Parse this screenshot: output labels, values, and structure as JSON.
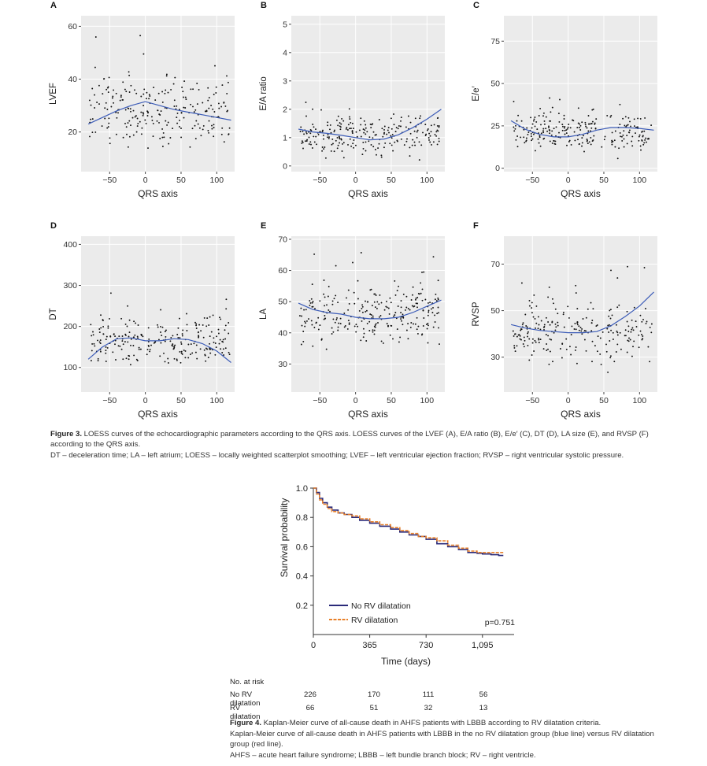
{
  "figure3": {
    "caption_label": "Figure 3.",
    "caption_text": " LOESS curves of the echocardiographic parameters according to the QRS axis. LOESS curves of the LVEF (A), E/A ratio (B), E/e′ (C), DT (D), LA size (E), and RVSP (F) according to the QRS axis.",
    "abbreviations": "DT – deceleration time; LA – left atrium; LOESS – locally weighted scatterplot smoothing; LVEF – left ventricular ejection fraction; RVSP – right ventricular systolic pressure."
  },
  "chart_data": [
    {
      "type": "scatter",
      "panel": "A",
      "xlabel": "QRS axis",
      "ylabel": "LVEF",
      "xlim": [
        -90,
        125
      ],
      "ylim": [
        5,
        64
      ],
      "xticks": [
        -50,
        0,
        50,
        100
      ],
      "yticks": [
        20,
        40,
        60
      ],
      "loess": {
        "x": [
          -80,
          -60,
          -40,
          -20,
          0,
          20,
          40,
          60,
          80,
          100,
          120
        ],
        "y": [
          23,
          25.5,
          28,
          30,
          31.5,
          30,
          28.5,
          27.5,
          26.5,
          25.5,
          24.5
        ]
      },
      "point_cloud": {
        "x_min": -78,
        "x_max": 118,
        "y_center": 28,
        "y_spread": 11,
        "n": 240,
        "seed": 11
      }
    },
    {
      "type": "scatter",
      "panel": "B",
      "xlabel": "QRS axis",
      "ylabel": "E/A ratio",
      "xlim": [
        -90,
        125
      ],
      "ylim": [
        -0.2,
        5.3
      ],
      "xticks": [
        -50,
        0,
        50,
        100
      ],
      "yticks": [
        0,
        1,
        2,
        3,
        4,
        5
      ],
      "loess": {
        "x": [
          -80,
          -60,
          -40,
          -20,
          0,
          20,
          40,
          60,
          80,
          100,
          120
        ],
        "y": [
          1.3,
          1.2,
          1.15,
          1.08,
          1.0,
          0.92,
          0.95,
          1.1,
          1.35,
          1.65,
          2.0
        ]
      },
      "point_cloud": {
        "x_min": -78,
        "x_max": 118,
        "y_center": 1.1,
        "y_spread": 0.6,
        "n": 240,
        "seed": 22
      }
    },
    {
      "type": "scatter",
      "panel": "C",
      "xlabel": "QRS axis",
      "ylabel": "E/e′",
      "xlim": [
        -90,
        125
      ],
      "ylim": [
        -2,
        90
      ],
      "xticks": [
        -50,
        0,
        50,
        100
      ],
      "yticks": [
        0,
        25,
        50,
        75
      ],
      "loess": {
        "x": [
          -80,
          -60,
          -40,
          -20,
          0,
          20,
          40,
          60,
          80,
          100,
          120
        ],
        "y": [
          28,
          23,
          20,
          18.5,
          18.5,
          20,
          22.5,
          24,
          24,
          23.5,
          22.5
        ]
      },
      "point_cloud": {
        "x_min": -78,
        "x_max": 118,
        "y_center": 21,
        "y_spread": 9,
        "n": 240,
        "seed": 33
      }
    },
    {
      "type": "scatter",
      "panel": "D",
      "xlabel": "QRS axis",
      "ylabel": "DT",
      "xlim": [
        -90,
        125
      ],
      "ylim": [
        40,
        420
      ],
      "xticks": [
        -50,
        0,
        50,
        100
      ],
      "yticks": [
        100,
        200,
        300,
        400
      ],
      "loess": {
        "x": [
          -80,
          -60,
          -40,
          -20,
          0,
          20,
          40,
          60,
          80,
          100,
          120
        ],
        "y": [
          120,
          150,
          170,
          172,
          165,
          165,
          170,
          168,
          158,
          140,
          112
        ]
      },
      "point_cloud": {
        "x_min": -78,
        "x_max": 118,
        "y_center": 162,
        "y_spread": 48,
        "n": 240,
        "seed": 44
      }
    },
    {
      "type": "scatter",
      "panel": "E",
      "xlabel": "QRS axis",
      "ylabel": "LA",
      "xlim": [
        -90,
        125
      ],
      "ylim": [
        21,
        71
      ],
      "xticks": [
        -50,
        0,
        50,
        100
      ],
      "yticks": [
        30,
        40,
        50,
        60,
        70
      ],
      "loess": {
        "x": [
          -80,
          -60,
          -40,
          -20,
          0,
          20,
          40,
          60,
          80,
          100,
          120
        ],
        "y": [
          49.5,
          47.5,
          46.5,
          46,
          45,
          44.5,
          44.5,
          45,
          46.5,
          48.5,
          50.5
        ]
      },
      "point_cloud": {
        "x_min": -78,
        "x_max": 118,
        "y_center": 46,
        "y_spread": 8,
        "n": 260,
        "seed": 55
      }
    },
    {
      "type": "scatter",
      "panel": "F",
      "xlabel": "QRS axis",
      "ylabel": "RVSP",
      "xlim": [
        -90,
        125
      ],
      "ylim": [
        15,
        82
      ],
      "xticks": [
        -50,
        0,
        50,
        100
      ],
      "yticks": [
        30,
        50,
        70
      ],
      "loess": {
        "x": [
          -80,
          -60,
          -40,
          -20,
          0,
          20,
          40,
          60,
          80,
          100,
          120
        ],
        "y": [
          44,
          42.5,
          41.5,
          41,
          40.5,
          40.5,
          41,
          43.5,
          47.5,
          52,
          58
        ]
      },
      "point_cloud": {
        "x_min": -78,
        "x_max": 118,
        "y_center": 41,
        "y_spread": 11,
        "n": 230,
        "seed": 66
      }
    },
    {
      "type": "line",
      "panel": "KM",
      "xlabel": "Time (days)",
      "ylabel": "Survival probability",
      "xlim": [
        0,
        1300
      ],
      "ylim": [
        0.0,
        1.0
      ],
      "xticks": [
        0,
        365,
        730,
        1095
      ],
      "xtick_labels": [
        "0",
        "365",
        "730",
        "1,095"
      ],
      "yticks": [
        0.2,
        0.4,
        0.6,
        0.8,
        1.0
      ],
      "ytick_labels": [
        "0.2",
        "0.4",
        "0.6",
        "0.8",
        "1.0"
      ],
      "series": [
        {
          "name": "No RV dilatation",
          "color": "#2b2b7a",
          "style": "solid",
          "x": [
            0,
            20,
            40,
            60,
            90,
            120,
            160,
            200,
            250,
            300,
            365,
            430,
            500,
            560,
            620,
            680,
            730,
            800,
            870,
            940,
            1000,
            1060,
            1095,
            1150,
            1200,
            1230
          ],
          "y": [
            1.0,
            0.97,
            0.93,
            0.9,
            0.87,
            0.85,
            0.83,
            0.82,
            0.8,
            0.78,
            0.76,
            0.74,
            0.72,
            0.7,
            0.68,
            0.67,
            0.65,
            0.62,
            0.6,
            0.58,
            0.56,
            0.555,
            0.55,
            0.545,
            0.54,
            0.54
          ]
        },
        {
          "name": "RV dilatation",
          "color": "#e8812b",
          "style": "dashed",
          "x": [
            0,
            20,
            40,
            60,
            90,
            120,
            160,
            200,
            250,
            300,
            365,
            430,
            500,
            560,
            620,
            680,
            730,
            800,
            870,
            940,
            1000,
            1060,
            1095,
            1150,
            1200,
            1230
          ],
          "y": [
            1.0,
            0.96,
            0.92,
            0.89,
            0.86,
            0.84,
            0.83,
            0.82,
            0.81,
            0.79,
            0.77,
            0.75,
            0.73,
            0.71,
            0.69,
            0.67,
            0.66,
            0.64,
            0.61,
            0.59,
            0.57,
            0.56,
            0.56,
            0.56,
            0.56,
            0.56
          ]
        }
      ],
      "p_value": "p=0.751"
    }
  ],
  "figure4": {
    "risk_title": "No. at risk",
    "risk_rows": [
      {
        "label": "No RV dilatation",
        "values": [
          "226",
          "170",
          "111",
          "56"
        ]
      },
      {
        "label": "RV dilatation",
        "values": [
          "66",
          "51",
          "32",
          "13"
        ]
      }
    ],
    "caption_label": "Figure 4.",
    "caption_text": " Kaplan-Meier curve of all-cause death in AHFS patients with LBBB according to RV dilatation criteria.",
    "caption_line2": "Kaplan-Meier curve of all-cause death in AHFS patients with LBBB in the no RV dilatation group (blue line) versus RV dilatation group (red line).",
    "abbreviations": "AHFS – acute heart failure syndrome; LBBB – left bundle branch block; RV – right ventricle."
  }
}
